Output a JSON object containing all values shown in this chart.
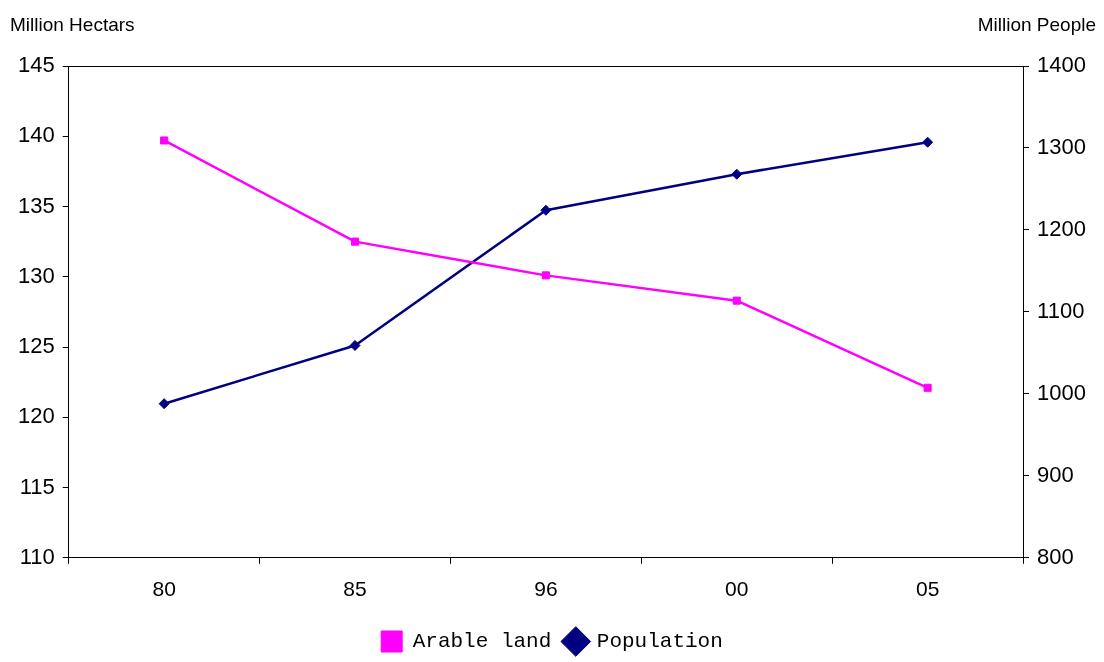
{
  "chart_data": {
    "type": "line",
    "ylabel": "Million Hectars",
    "y2label": "Million People",
    "categories": [
      "80",
      "85",
      "96",
      "00",
      "05"
    ],
    "series": [
      {
        "name": "Arable land",
        "color": "#ff00ff",
        "marker": "square",
        "values": [
          139.7,
          132.5,
          130.1,
          128.3,
          122.1
        ]
      },
      {
        "name": "Population",
        "color": "#000080",
        "marker": "diamond",
        "axis": "y2",
        "values": [
          988,
          1059,
          1224,
          1268,
          1307
        ]
      }
    ],
    "ylim": [
      110,
      145
    ],
    "yticks": [
      110,
      115,
      120,
      125,
      130,
      135,
      140,
      145
    ],
    "y2lim": [
      800,
      1400
    ],
    "y2ticks": [
      800,
      900,
      1000,
      1100,
      1200,
      1300,
      1400
    ],
    "grid": false,
    "legend": "bottom"
  }
}
